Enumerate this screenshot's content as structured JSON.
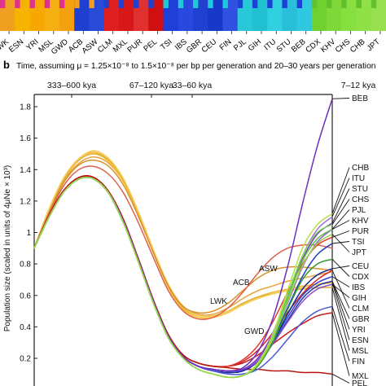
{
  "panel_b": {
    "letter": "b",
    "time_caption": "Time, assuming μ = 1.25×10⁻⁸ to 1.5×10⁻⁸ per bp per generation and 20–30 years per generation"
  },
  "bar_labels": [
    "LWK",
    "ESN",
    "YRI",
    "MSL",
    "GWD",
    "ACB",
    "ASW",
    "CLM",
    "MXL",
    "PUR",
    "PEL",
    "TSI",
    "IBS",
    "GBR",
    "CEU",
    "FIN",
    "PJL",
    "GIH",
    "ITU",
    "STU",
    "BEB",
    "CDX",
    "KHV",
    "CHS",
    "CHB",
    "JPT"
  ],
  "chart_data": {
    "type": "line",
    "ylabel": "Population size (scaled in units of 4μNe × 10³)",
    "y_ticks": [
      0.2,
      0.4,
      0.6,
      0.8,
      1,
      1.2,
      1.4,
      1.6,
      1.8
    ],
    "ylim": [
      0.05,
      1.9
    ],
    "top_axis_labels": [
      "333–600 kya",
      "67–120 kya",
      "33–60 kya",
      "7–12 kya"
    ],
    "x_knots": [
      0,
      0.05,
      0.1,
      0.15,
      0.2,
      0.25,
      0.3,
      0.35,
      0.4,
      0.45,
      0.5,
      0.55,
      0.6,
      0.65,
      0.7,
      0.75,
      0.8,
      0.85,
      0.9,
      0.95,
      1.0
    ],
    "series": [
      {
        "name": "LWK",
        "color": "#e8a33c",
        "values": [
          0.9,
          1.14,
          1.33,
          1.44,
          1.48,
          1.44,
          1.32,
          1.12,
          0.88,
          0.66,
          0.53,
          0.48,
          0.48,
          0.52,
          0.58,
          0.63,
          0.66,
          0.69,
          0.71,
          0.73,
          0.75
        ]
      },
      {
        "name": "ESN",
        "color": "#f0b63c",
        "values": [
          0.9,
          1.15,
          1.35,
          1.47,
          1.51,
          1.46,
          1.33,
          1.12,
          0.88,
          0.66,
          0.52,
          0.47,
          0.47,
          0.5,
          0.55,
          0.59,
          0.62,
          0.64,
          0.66,
          0.67,
          0.68
        ]
      },
      {
        "name": "YRI",
        "color": "#f5c542",
        "values": [
          0.9,
          1.15,
          1.34,
          1.46,
          1.5,
          1.45,
          1.32,
          1.11,
          0.87,
          0.65,
          0.51,
          0.46,
          0.46,
          0.49,
          0.54,
          0.58,
          0.61,
          0.63,
          0.65,
          0.67,
          0.69
        ]
      },
      {
        "name": "MSL",
        "color": "#e0b030",
        "values": [
          0.9,
          1.14,
          1.34,
          1.46,
          1.5,
          1.46,
          1.33,
          1.12,
          0.88,
          0.66,
          0.52,
          0.47,
          0.47,
          0.5,
          0.55,
          0.59,
          0.61,
          0.63,
          0.64,
          0.65,
          0.65
        ]
      },
      {
        "name": "GWD",
        "color": "#f7cc55",
        "values": [
          0.9,
          1.15,
          1.35,
          1.47,
          1.52,
          1.47,
          1.34,
          1.13,
          0.89,
          0.67,
          0.53,
          0.47,
          0.47,
          0.5,
          0.54,
          0.58,
          0.61,
          0.63,
          0.65,
          0.67,
          0.69
        ]
      },
      {
        "name": "ACB",
        "color": "#d8922c",
        "values": [
          0.9,
          1.13,
          1.32,
          1.43,
          1.46,
          1.42,
          1.3,
          1.1,
          0.87,
          0.66,
          0.53,
          0.49,
          0.5,
          0.55,
          0.63,
          0.71,
          0.76,
          0.78,
          0.78,
          0.77,
          0.76
        ]
      },
      {
        "name": "ASW",
        "color": "#e0604a",
        "values": [
          0.9,
          1.12,
          1.3,
          1.4,
          1.42,
          1.37,
          1.25,
          1.06,
          0.84,
          0.63,
          0.5,
          0.45,
          0.46,
          0.52,
          0.62,
          0.74,
          0.84,
          0.9,
          0.92,
          0.92,
          0.9
        ]
      },
      {
        "name": "CLM",
        "color": "#d4262c",
        "values": [
          0.9,
          1.11,
          1.27,
          1.35,
          1.35,
          1.26,
          1.08,
          0.83,
          0.57,
          0.35,
          0.22,
          0.17,
          0.15,
          0.15,
          0.18,
          0.25,
          0.36,
          0.49,
          0.61,
          0.7,
          0.76
        ]
      },
      {
        "name": "MXL",
        "color": "#c81818",
        "values": [
          0.9,
          1.11,
          1.27,
          1.35,
          1.35,
          1.26,
          1.08,
          0.83,
          0.57,
          0.35,
          0.22,
          0.17,
          0.15,
          0.15,
          0.17,
          0.22,
          0.29,
          0.36,
          0.42,
          0.47,
          0.49
        ]
      },
      {
        "name": "PUR",
        "color": "#e23a2e",
        "values": [
          0.9,
          1.11,
          1.27,
          1.35,
          1.35,
          1.26,
          1.08,
          0.83,
          0.57,
          0.35,
          0.22,
          0.17,
          0.15,
          0.15,
          0.19,
          0.28,
          0.43,
          0.62,
          0.8,
          0.92,
          0.97
        ]
      },
      {
        "name": "PEL",
        "color": "#b81410",
        "values": [
          0.9,
          1.11,
          1.27,
          1.35,
          1.35,
          1.26,
          1.08,
          0.83,
          0.57,
          0.35,
          0.22,
          0.17,
          0.15,
          0.14,
          0.13,
          0.13,
          0.12,
          0.12,
          0.11,
          0.11,
          0.1
        ]
      },
      {
        "name": "TSI",
        "color": "#1f3fbf",
        "values": [
          0.9,
          1.1,
          1.26,
          1.34,
          1.34,
          1.25,
          1.06,
          0.82,
          0.56,
          0.34,
          0.21,
          0.15,
          0.12,
          0.11,
          0.12,
          0.18,
          0.32,
          0.52,
          0.72,
          0.86,
          0.93
        ]
      },
      {
        "name": "IBS",
        "color": "#3344cc",
        "values": [
          0.9,
          1.1,
          1.26,
          1.34,
          1.34,
          1.25,
          1.06,
          0.82,
          0.56,
          0.34,
          0.21,
          0.15,
          0.12,
          0.11,
          0.12,
          0.18,
          0.3,
          0.46,
          0.6,
          0.68,
          0.72
        ]
      },
      {
        "name": "GBR",
        "color": "#2536a8",
        "values": [
          0.9,
          1.1,
          1.26,
          1.34,
          1.34,
          1.25,
          1.06,
          0.82,
          0.56,
          0.34,
          0.21,
          0.15,
          0.12,
          0.11,
          0.12,
          0.18,
          0.29,
          0.44,
          0.58,
          0.66,
          0.69
        ]
      },
      {
        "name": "CEU",
        "color": "#1a2c9a",
        "values": [
          0.9,
          1.1,
          1.26,
          1.34,
          1.34,
          1.25,
          1.06,
          0.82,
          0.56,
          0.34,
          0.21,
          0.15,
          0.12,
          0.11,
          0.12,
          0.18,
          0.3,
          0.48,
          0.64,
          0.73,
          0.77
        ]
      },
      {
        "name": "FIN",
        "color": "#4a5ad6",
        "values": [
          0.9,
          1.1,
          1.26,
          1.34,
          1.34,
          1.25,
          1.06,
          0.82,
          0.56,
          0.34,
          0.21,
          0.15,
          0.12,
          0.1,
          0.1,
          0.13,
          0.21,
          0.32,
          0.43,
          0.5,
          0.53
        ]
      },
      {
        "name": "PJL",
        "color": "#9a5fd8",
        "values": [
          0.9,
          1.1,
          1.26,
          1.34,
          1.34,
          1.25,
          1.07,
          0.82,
          0.56,
          0.34,
          0.21,
          0.15,
          0.13,
          0.12,
          0.13,
          0.19,
          0.33,
          0.55,
          0.78,
          0.94,
          1.02
        ]
      },
      {
        "name": "GIH",
        "color": "#8a4fc8",
        "values": [
          0.9,
          1.1,
          1.26,
          1.34,
          1.34,
          1.25,
          1.07,
          0.82,
          0.56,
          0.34,
          0.21,
          0.15,
          0.13,
          0.12,
          0.13,
          0.18,
          0.29,
          0.43,
          0.56,
          0.64,
          0.67
        ]
      },
      {
        "name": "ITU",
        "color": "#a46ee0",
        "values": [
          0.9,
          1.1,
          1.26,
          1.34,
          1.34,
          1.25,
          1.07,
          0.82,
          0.56,
          0.34,
          0.21,
          0.15,
          0.13,
          0.12,
          0.13,
          0.2,
          0.36,
          0.6,
          0.85,
          1.02,
          1.1
        ]
      },
      {
        "name": "STU",
        "color": "#7a40bc",
        "values": [
          0.9,
          1.1,
          1.26,
          1.34,
          1.34,
          1.25,
          1.07,
          0.82,
          0.56,
          0.34,
          0.21,
          0.15,
          0.13,
          0.12,
          0.13,
          0.2,
          0.35,
          0.59,
          0.83,
          0.99,
          1.06
        ]
      },
      {
        "name": "BEB",
        "color": "#6a2fc0",
        "values": [
          0.9,
          1.1,
          1.26,
          1.34,
          1.34,
          1.25,
          1.07,
          0.82,
          0.56,
          0.34,
          0.21,
          0.15,
          0.13,
          0.12,
          0.14,
          0.24,
          0.45,
          0.78,
          1.18,
          1.55,
          1.85
        ]
      },
      {
        "name": "CDX",
        "color": "#2e9a2e",
        "values": [
          0.9,
          1.1,
          1.26,
          1.34,
          1.34,
          1.25,
          1.06,
          0.81,
          0.55,
          0.33,
          0.2,
          0.13,
          0.1,
          0.08,
          0.09,
          0.15,
          0.3,
          0.51,
          0.7,
          0.8,
          0.83
        ]
      },
      {
        "name": "KHV",
        "color": "#5cc24a",
        "values": [
          0.9,
          1.1,
          1.26,
          1.34,
          1.34,
          1.25,
          1.06,
          0.81,
          0.55,
          0.33,
          0.2,
          0.13,
          0.1,
          0.08,
          0.09,
          0.16,
          0.33,
          0.58,
          0.82,
          0.96,
          1.02
        ]
      },
      {
        "name": "CHS",
        "color": "#7fd35a",
        "values": [
          0.9,
          1.1,
          1.26,
          1.34,
          1.34,
          1.25,
          1.06,
          0.81,
          0.55,
          0.33,
          0.2,
          0.13,
          0.1,
          0.08,
          0.09,
          0.16,
          0.34,
          0.6,
          0.85,
          1.0,
          1.05
        ]
      },
      {
        "name": "CHB",
        "color": "#b7e04a",
        "values": [
          0.9,
          1.1,
          1.26,
          1.34,
          1.34,
          1.25,
          1.06,
          0.81,
          0.55,
          0.33,
          0.2,
          0.13,
          0.1,
          0.08,
          0.09,
          0.17,
          0.35,
          0.63,
          0.9,
          1.05,
          1.12
        ]
      },
      {
        "name": "JPT",
        "color": "#9ad64a",
        "values": [
          0.9,
          1.1,
          1.26,
          1.34,
          1.34,
          1.25,
          1.06,
          0.81,
          0.55,
          0.33,
          0.2,
          0.13,
          0.1,
          0.08,
          0.09,
          0.16,
          0.32,
          0.56,
          0.79,
          0.93,
          0.99
        ]
      }
    ],
    "inline_labels": [
      "ASW",
      "ACB",
      "LWK",
      "GWD"
    ],
    "right_labels": [
      "BEB",
      "CHB",
      "ITU",
      "STU",
      "CHS",
      "PJL",
      "KHV",
      "PUR",
      "TSI",
      "JPT",
      "CEU",
      "CDX",
      "IBS",
      "GIH",
      "CLM",
      "GBR",
      "YRI",
      "ESN",
      "MSL",
      "FIN",
      "MXL",
      "PEL"
    ]
  }
}
